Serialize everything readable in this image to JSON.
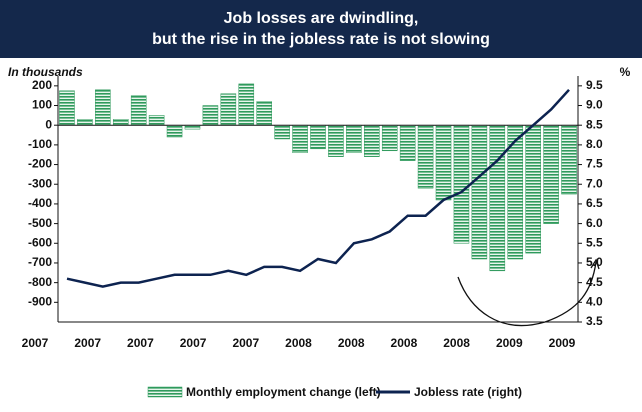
{
  "chart_data": {
    "type": "bar_line",
    "title": "Job losses are dwindling,",
    "subtitle": "but the rise in the jobless rate is not slowing",
    "y_label": "In thousands",
    "y2_label": "%",
    "x_labels": [
      "2007",
      "2007",
      "2007",
      "2007",
      "2007",
      "2008",
      "2008",
      "2008",
      "2008",
      "2009",
      "2009"
    ],
    "series": [
      {
        "name": "Monthly employment change (left)",
        "color": "#2f9a5c",
        "axis": "y",
        "values": [
          175,
          30,
          180,
          30,
          150,
          50,
          -60,
          -20,
          100,
          160,
          210,
          120,
          -70,
          -140,
          -120,
          -160,
          -140,
          -160,
          -130,
          -180,
          -320,
          -380,
          -600,
          -680,
          -740,
          -680,
          -650,
          -500,
          -350
        ]
      },
      {
        "name": "Jobless rate (right)",
        "color": "#0d2350",
        "axis": "y2",
        "values": [
          4.6,
          4.5,
          4.4,
          4.5,
          4.5,
          4.6,
          4.7,
          4.7,
          4.7,
          4.8,
          4.7,
          4.9,
          4.9,
          4.8,
          5.1,
          5.0,
          5.5,
          5.6,
          5.8,
          6.2,
          6.2,
          6.6,
          6.8,
          7.2,
          7.6,
          8.1,
          8.5,
          8.9,
          9.4
        ]
      }
    ],
    "ylim": [
      -1000,
      250
    ],
    "yticks": [
      200,
      100,
      0,
      -100,
      -200,
      -300,
      -400,
      -500,
      -600,
      -700,
      -800,
      -900
    ],
    "y2lim": [
      3.5,
      9.75
    ],
    "y2ticks": [
      {
        "value": 9.5,
        "label": "9.5"
      },
      {
        "value": 9,
        "label": "9.0"
      },
      {
        "value": 8.5,
        "label": "8.5"
      },
      {
        "value": 8,
        "label": "8.0"
      },
      {
        "value": 7.5,
        "label": "7.5"
      },
      {
        "value": 7,
        "label": "7.0"
      },
      {
        "value": 6.5,
        "label": "6.5"
      },
      {
        "value": 6,
        "label": "6.0"
      },
      {
        "value": 5.5,
        "label": "5.5"
      },
      {
        "value": 5,
        "label": "5.0"
      },
      {
        "value": 4.5,
        "label": "4.5"
      },
      {
        "value": 4,
        "label": "4.0"
      },
      {
        "value": 3.5,
        "label": "3.5"
      }
    ]
  }
}
